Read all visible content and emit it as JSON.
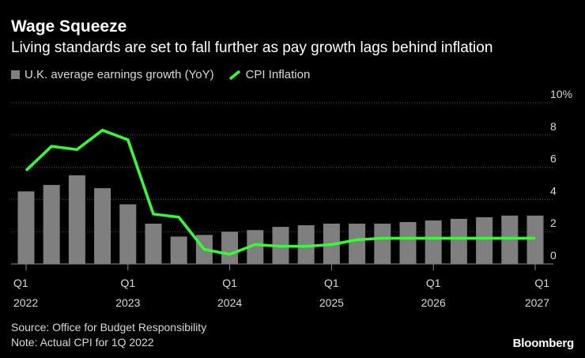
{
  "header": {
    "title": "Wage Squeeze",
    "subtitle": "Living standards are set to fall further as pay growth lags behind inflation"
  },
  "legend": {
    "bars_label": "U.K. average earnings growth (YoY)",
    "line_label": "CPI Inflation"
  },
  "footer": {
    "source": "Source: Office for Budget Responsibility",
    "note": "Note: Actual CPI for 1Q 2022",
    "brand": "Bloomberg"
  },
  "colors": {
    "background": "#000000",
    "bar": "#7f7f7f",
    "line": "#33ff33",
    "grid": "#4d4d4d",
    "axis_text": "#d9d9d9"
  },
  "chart_data": {
    "type": "bar+line",
    "title": "Wage Squeeze",
    "subtitle": "Living standards are set to fall further as pay growth lags behind inflation",
    "categories": [
      "Q1 2022",
      "Q2 2022",
      "Q3 2022",
      "Q4 2022",
      "Q1 2023",
      "Q2 2023",
      "Q3 2023",
      "Q4 2023",
      "Q1 2024",
      "Q2 2024",
      "Q3 2024",
      "Q4 2024",
      "Q1 2025",
      "Q2 2025",
      "Q3 2025",
      "Q4 2025",
      "Q1 2026",
      "Q2 2026",
      "Q3 2026",
      "Q4 2026",
      "Q1 2027"
    ],
    "series": [
      {
        "name": "U.K. average earnings growth (YoY)",
        "kind": "bar",
        "values": [
          4.5,
          4.9,
          5.5,
          4.7,
          3.7,
          2.5,
          1.7,
          1.8,
          2.0,
          2.1,
          2.3,
          2.4,
          2.5,
          2.5,
          2.5,
          2.6,
          2.7,
          2.8,
          2.9,
          3.0,
          3.0
        ]
      },
      {
        "name": "CPI Inflation",
        "kind": "line",
        "values": [
          5.8,
          7.3,
          7.1,
          8.3,
          7.7,
          3.1,
          2.9,
          0.9,
          0.6,
          1.2,
          1.1,
          1.1,
          1.2,
          1.5,
          1.6,
          1.6,
          1.6,
          1.6,
          1.6,
          1.6,
          1.6
        ]
      }
    ],
    "x_tick_labels": [
      {
        "index": 0,
        "quarter": "Q1",
        "year": "2022"
      },
      {
        "index": 4,
        "quarter": "Q1",
        "year": "2023"
      },
      {
        "index": 8,
        "quarter": "Q1",
        "year": "2024"
      },
      {
        "index": 12,
        "quarter": "Q1",
        "year": "2025"
      },
      {
        "index": 16,
        "quarter": "Q1",
        "year": "2026"
      },
      {
        "index": 20,
        "quarter": "Q1",
        "year": "2027"
      }
    ],
    "y_ticks": [
      "0",
      "2",
      "4",
      "6",
      "8",
      "10%"
    ],
    "y_tick_values": [
      0,
      2,
      4,
      6,
      8,
      10
    ],
    "ylim": [
      0,
      10
    ],
    "grid": true,
    "y_axis_side": "right",
    "legend_position": "top-left"
  }
}
